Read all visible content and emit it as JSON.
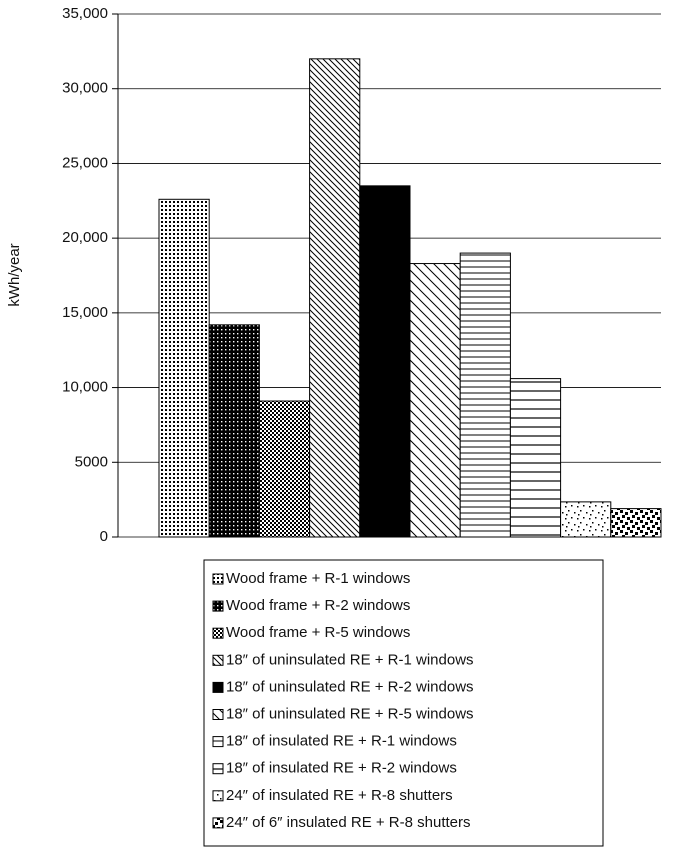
{
  "chart_data": {
    "type": "bar",
    "y_label": "kWh/year",
    "ylim": [
      0,
      35000
    ],
    "yticks": [
      0,
      5000,
      {
        "value": 10000,
        "label": "10,000"
      },
      {
        "value": 15000,
        "label": "15,000"
      },
      {
        "value": 20000,
        "label": "20,000"
      },
      {
        "value": 25000,
        "label": "25,000"
      },
      {
        "value": 30000,
        "label": "30,000"
      },
      {
        "value": 35000,
        "label": "35,000"
      }
    ],
    "grid": true,
    "series": [
      {
        "name": "Wood frame + R-1 windows",
        "pattern": "dots-sparse",
        "values": [
          22600
        ]
      },
      {
        "name": "Wood frame + R-2 windows",
        "pattern": "dots-dense",
        "values": [
          14200
        ]
      },
      {
        "name": "Wood frame + R-5 windows",
        "pattern": "checker",
        "values": [
          9100
        ]
      },
      {
        "name": "18″ of uninsulated RE + R-1 windows",
        "pattern": "diag-fine",
        "values": [
          32000
        ]
      },
      {
        "name": "18″ of uninsulated RE + R-2 windows",
        "pattern": "solid",
        "values": [
          23500
        ]
      },
      {
        "name": "18″ of uninsulated RE + R-5 windows",
        "pattern": "diag-wide",
        "values": [
          18300
        ]
      },
      {
        "name": "18″ of insulated RE + R-1 windows",
        "pattern": "horiz",
        "values": [
          19000
        ]
      },
      {
        "name": "18″ of insulated RE + R-2 windows",
        "pattern": "horiz-wide",
        "values": [
          10600
        ]
      },
      {
        "name": "24″ of insulated RE + R-8 shutters",
        "pattern": "speckle",
        "values": [
          2350
        ]
      },
      {
        "name": "24″ of 6″ insulated RE + R-8 shutters",
        "pattern": "blocks",
        "values": [
          1900
        ]
      }
    ]
  }
}
